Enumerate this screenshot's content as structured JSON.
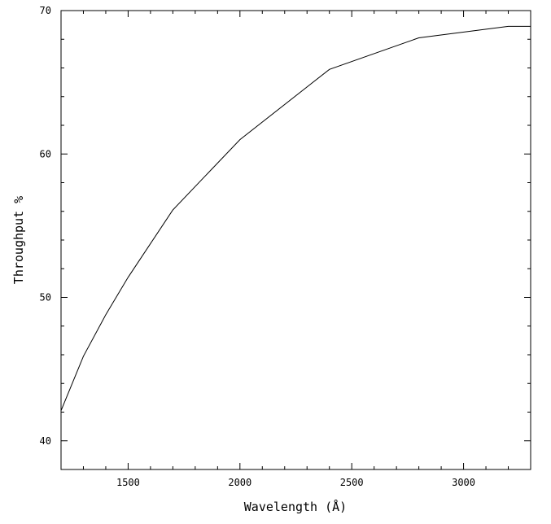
{
  "chart_data": {
    "type": "line",
    "title": "",
    "xlabel": "Wavelength (Å)",
    "ylabel": "Throughput %",
    "xlim": [
      1200,
      3300
    ],
    "ylim": [
      38,
      70
    ],
    "x_major_ticks": [
      1500,
      2000,
      2500,
      3000
    ],
    "x_tick_labels": [
      "1500",
      "2000",
      "2500",
      "3000"
    ],
    "x_minor_step": 100,
    "y_major_ticks": [
      40,
      50,
      60,
      70
    ],
    "y_tick_labels": [
      "40",
      "50",
      "60",
      "70"
    ],
    "y_minor_step": 2,
    "grid": false,
    "legend": "none",
    "series": [
      {
        "x": [
          1200,
          1300,
          1400,
          1500,
          1700,
          2000,
          2400,
          2800,
          3200,
          3300
        ],
        "y": [
          42.1,
          45.9,
          48.8,
          51.4,
          56.1,
          61.0,
          65.9,
          68.1,
          68.9,
          68.9
        ]
      }
    ]
  }
}
